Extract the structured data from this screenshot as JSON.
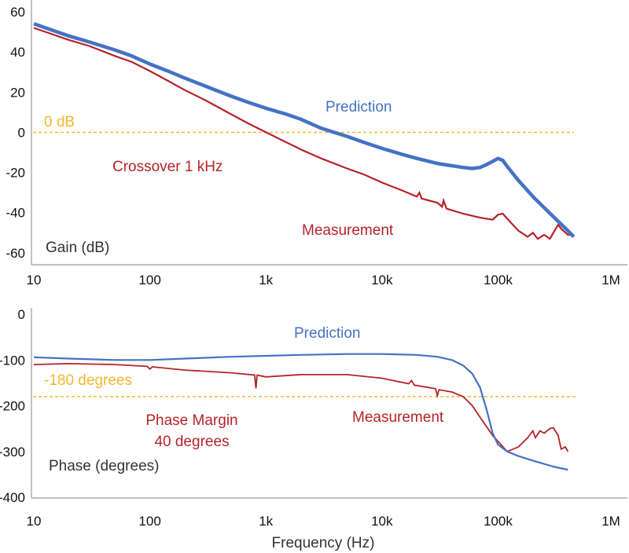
{
  "colors": {
    "prediction": "#4472c4",
    "measurement": "#b5232a",
    "reference": "#f2b731",
    "axis": "#888888",
    "text": "#111111"
  },
  "chart_data": [
    {
      "type": "line",
      "panel": "gain",
      "x_scale": "log",
      "x_ticks": [
        10,
        100,
        1000,
        10000,
        100000,
        1000000
      ],
      "x_tick_labels": [
        "10",
        "100",
        "1k",
        "10k",
        "100k",
        "1M"
      ],
      "y_ticks": [
        60,
        40,
        20,
        0,
        -20,
        -40,
        -60
      ],
      "y_tick_labels": [
        "60",
        "40",
        "20",
        "0",
        "-20",
        "-40",
        "-60"
      ],
      "xlim": [
        10,
        1000000
      ],
      "ylim": [
        -62,
        60
      ],
      "ylabel": "Gain (dB)",
      "reference": {
        "y": 0,
        "label": "0 dB"
      },
      "annotations": {
        "prediction": "Prediction",
        "measurement": "Measurement",
        "crossover": "Crossover 1 kHz"
      },
      "series": [
        {
          "name": "Prediction",
          "x": [
            10,
            20,
            30,
            50,
            70,
            100,
            150,
            200,
            300,
            500,
            700,
            1000,
            1500,
            2000,
            3000,
            5000,
            7000,
            10000,
            15000,
            20000,
            30000,
            50000,
            60000,
            70000,
            80000,
            90000,
            100000,
            110000,
            120000,
            150000,
            200000,
            300000,
            400000,
            450000
          ],
          "y": [
            54,
            48,
            45,
            41,
            38,
            34,
            30,
            27,
            23,
            18,
            15,
            12,
            9,
            6.5,
            2,
            -2,
            -5,
            -8,
            -11,
            -13,
            -15.5,
            -17.5,
            -18,
            -17.5,
            -16,
            -14.5,
            -13,
            -14,
            -17,
            -24,
            -32,
            -42,
            -49,
            -52
          ]
        },
        {
          "name": "Measurement",
          "x": [
            10,
            20,
            30,
            50,
            70,
            100,
            150,
            200,
            300,
            500,
            700,
            1000,
            1500,
            2000,
            3000,
            5000,
            7000,
            10000,
            15000,
            20000,
            21000,
            22000,
            30000,
            33000,
            34000,
            36000,
            50000,
            70000,
            90000,
            100000,
            110000,
            120000,
            150000,
            180000,
            200000,
            220000,
            250000,
            280000,
            300000,
            330000,
            350000,
            400000,
            450000
          ],
          "y": [
            52,
            46,
            43,
            38,
            35,
            30.5,
            25,
            21,
            16,
            9,
            4.5,
            0,
            -5,
            -8.5,
            -13,
            -18,
            -21,
            -25,
            -29,
            -32,
            -30,
            -33,
            -35,
            -37,
            -34,
            -38,
            -40.5,
            -42.5,
            -43.5,
            -41,
            -40.5,
            -43,
            -49,
            -52,
            -50,
            -53,
            -51,
            -53,
            -50,
            -46,
            -48,
            -51,
            -51
          ]
        }
      ]
    },
    {
      "type": "line",
      "panel": "phase",
      "x_scale": "log",
      "x_ticks": [
        10,
        100,
        1000,
        10000,
        100000,
        1000000
      ],
      "x_tick_labels": [
        "10",
        "100",
        "1k",
        "10k",
        "100k",
        "1M"
      ],
      "y_ticks": [
        0,
        -100,
        -200,
        -300,
        -400
      ],
      "y_tick_labels": [
        "0",
        "-100",
        "-200",
        "-300",
        "-400"
      ],
      "xlim": [
        10,
        1000000
      ],
      "ylim": [
        -400,
        0
      ],
      "xlabel": "Frequency (Hz)",
      "ylabel": "Phase (degrees)",
      "reference": {
        "y": -180,
        "label": "-180 degrees"
      },
      "annotations": {
        "prediction": "Prediction",
        "measurement": "Measurement",
        "phase_margin_line1": "Phase Margin",
        "phase_margin_line2": "40 degrees"
      },
      "series": [
        {
          "name": "Prediction",
          "x": [
            10,
            20,
            50,
            100,
            200,
            500,
            1000,
            2000,
            5000,
            10000,
            20000,
            30000,
            40000,
            50000,
            60000,
            70000,
            80000,
            90000,
            100000,
            120000,
            150000,
            200000,
            300000,
            400000
          ],
          "y": [
            -94,
            -97,
            -100,
            -100,
            -97,
            -93,
            -91,
            -89,
            -87,
            -87,
            -89,
            -93,
            -100,
            -112,
            -130,
            -160,
            -210,
            -260,
            -285,
            -300,
            -310,
            -320,
            -333,
            -340
          ]
        },
        {
          "name": "Measurement",
          "x": [
            10,
            20,
            50,
            95,
            100,
            105,
            200,
            500,
            800,
            820,
            840,
            1000,
            2000,
            5000,
            10000,
            17000,
            18000,
            19000,
            25000,
            29000,
            30000,
            31000,
            40000,
            50000,
            60000,
            70000,
            90000,
            100000,
            120000,
            150000,
            180000,
            200000,
            210000,
            230000,
            250000,
            280000,
            300000,
            330000,
            350000,
            380000,
            400000
          ],
          "y": [
            -110,
            -108,
            -110,
            -114,
            -120,
            -115,
            -122,
            -128,
            -133,
            -162,
            -133,
            -137,
            -132,
            -132,
            -140,
            -152,
            -145,
            -155,
            -160,
            -163,
            -178,
            -165,
            -170,
            -180,
            -200,
            -225,
            -265,
            -278,
            -300,
            -290,
            -270,
            -255,
            -270,
            -255,
            -260,
            -250,
            -248,
            -265,
            -295,
            -290,
            -300
          ]
        }
      ]
    }
  ]
}
